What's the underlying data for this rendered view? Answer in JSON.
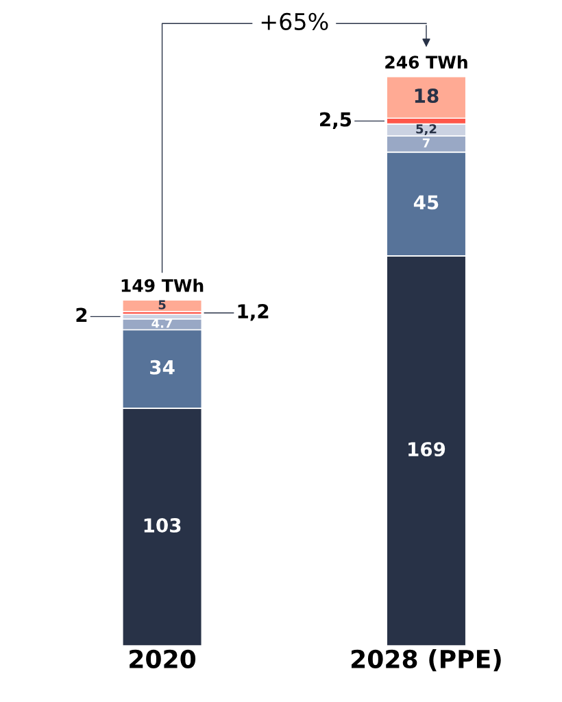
{
  "chart_data": {
    "type": "bar",
    "stacked": true,
    "categories": [
      "2020",
      "2028 (PPE)"
    ],
    "series": [
      {
        "color": "#283247",
        "values": [
          103,
          169
        ],
        "value_labels": [
          "103",
          "169"
        ]
      },
      {
        "color": "#577399",
        "values": [
          34,
          45
        ],
        "value_labels": [
          "34",
          "45"
        ]
      },
      {
        "color": "#99a8c5",
        "values": [
          4.7,
          7
        ],
        "value_labels": [
          "4.7",
          "7"
        ]
      },
      {
        "color": "#cbd2e2",
        "values": [
          2,
          5.2
        ],
        "value_labels": [
          "2",
          "5,2"
        ]
      },
      {
        "color": "#ff574a",
        "values": [
          1.2,
          2.5
        ],
        "value_labels": [
          "1,2",
          "2,5"
        ]
      },
      {
        "color": "#ffaa94",
        "values": [
          5,
          18
        ],
        "value_labels": [
          "5",
          "18"
        ]
      }
    ],
    "totals": [
      "149 TWh",
      "246 TWh"
    ],
    "annotations": [
      "+65%"
    ]
  }
}
